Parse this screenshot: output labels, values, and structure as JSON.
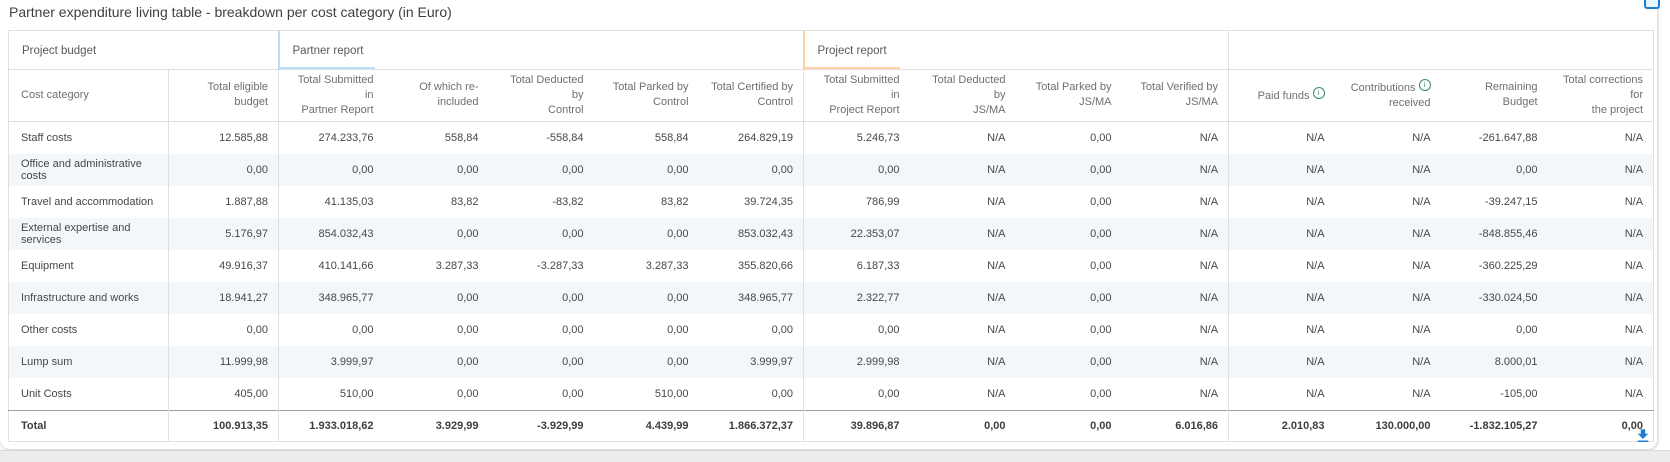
{
  "title": "Partner expenditure living table - breakdown per cost category (in Euro)",
  "accents": {
    "partner_report": "#b5e0f5",
    "project_report": "#fbd3a4",
    "info_icon": "#3c8a6d",
    "action_blue": "#1b7ed0"
  },
  "table": {
    "groups": [
      {
        "label": "Project budget",
        "span": 2,
        "accent": null
      },
      {
        "label": "Partner report",
        "span": 5,
        "accent": "#b5e0f5"
      },
      {
        "label": "Project report",
        "span": 4,
        "accent": "#fbd3a4"
      },
      {
        "label": "",
        "span": 4,
        "accent": null
      }
    ],
    "columns": [
      {
        "lines": [
          "Cost category"
        ]
      },
      {
        "lines": [
          "Total eligible budget"
        ]
      },
      {
        "lines": [
          "Total Submitted in",
          "Partner Report"
        ]
      },
      {
        "lines": [
          "Of which re-included"
        ]
      },
      {
        "lines": [
          "Total Deducted by",
          "Control"
        ]
      },
      {
        "lines": [
          "Total Parked by",
          "Control"
        ]
      },
      {
        "lines": [
          "Total Certified by",
          "Control"
        ]
      },
      {
        "lines": [
          "Total Submitted in",
          "Project Report"
        ]
      },
      {
        "lines": [
          "Total Deducted by",
          "JS/MA"
        ]
      },
      {
        "lines": [
          "Total Parked by",
          "JS/MA"
        ]
      },
      {
        "lines": [
          "Total Verified by",
          "JS/MA"
        ]
      },
      {
        "lines": [
          "Paid funds"
        ],
        "info": true
      },
      {
        "lines": [
          "Contributions",
          "received"
        ],
        "info": true
      },
      {
        "lines": [
          "Remaining Budget"
        ]
      },
      {
        "lines": [
          "Total corrections for",
          "the project"
        ]
      }
    ],
    "rows": [
      {
        "category": "Staff costs",
        "values": [
          "12.585,88",
          "274.233,76",
          "558,84",
          "-558,84",
          "558,84",
          "264.829,19",
          "5.246,73",
          "N/A",
          "0,00",
          "N/A",
          "N/A",
          "N/A",
          "-261.647,88",
          "N/A"
        ]
      },
      {
        "category": "Office and administrative costs",
        "values": [
          "0,00",
          "0,00",
          "0,00",
          "0,00",
          "0,00",
          "0,00",
          "0,00",
          "N/A",
          "0,00",
          "N/A",
          "N/A",
          "N/A",
          "0,00",
          "N/A"
        ]
      },
      {
        "category": "Travel and accommodation",
        "values": [
          "1.887,88",
          "41.135,03",
          "83,82",
          "-83,82",
          "83,82",
          "39.724,35",
          "786,99",
          "N/A",
          "0,00",
          "N/A",
          "N/A",
          "N/A",
          "-39.247,15",
          "N/A"
        ]
      },
      {
        "category": "External expertise and services",
        "values": [
          "5.176,97",
          "854.032,43",
          "0,00",
          "0,00",
          "0,00",
          "853.032,43",
          "22.353,07",
          "N/A",
          "0,00",
          "N/A",
          "N/A",
          "N/A",
          "-848.855,46",
          "N/A"
        ]
      },
      {
        "category": "Equipment",
        "values": [
          "49.916,37",
          "410.141,66",
          "3.287,33",
          "-3.287,33",
          "3.287,33",
          "355.820,66",
          "6.187,33",
          "N/A",
          "0,00",
          "N/A",
          "N/A",
          "N/A",
          "-360.225,29",
          "N/A"
        ]
      },
      {
        "category": "Infrastructure and works",
        "values": [
          "18.941,27",
          "348.965,77",
          "0,00",
          "0,00",
          "0,00",
          "348.965,77",
          "2.322,77",
          "N/A",
          "0,00",
          "N/A",
          "N/A",
          "N/A",
          "-330.024,50",
          "N/A"
        ]
      },
      {
        "category": "Other costs",
        "values": [
          "0,00",
          "0,00",
          "0,00",
          "0,00",
          "0,00",
          "0,00",
          "0,00",
          "N/A",
          "0,00",
          "N/A",
          "N/A",
          "N/A",
          "0,00",
          "N/A"
        ]
      },
      {
        "category": "Lump sum",
        "values": [
          "11.999,98",
          "3.999,97",
          "0,00",
          "0,00",
          "0,00",
          "3.999,97",
          "2.999,98",
          "N/A",
          "0,00",
          "N/A",
          "N/A",
          "N/A",
          "8.000,01",
          "N/A"
        ]
      },
      {
        "category": "Unit Costs",
        "values": [
          "405,00",
          "510,00",
          "0,00",
          "0,00",
          "510,00",
          "0,00",
          "0,00",
          "N/A",
          "0,00",
          "N/A",
          "N/A",
          "N/A",
          "-105,00",
          "N/A"
        ]
      }
    ],
    "total": {
      "category": "Total",
      "values": [
        "100.913,35",
        "1.933.018,62",
        "3.929,99",
        "-3.929,99",
        "4.439,99",
        "1.866.372,37",
        "39.896,87",
        "0,00",
        "0,00",
        "6.016,86",
        "2.010,83",
        "130.000,00",
        "-1.832.105,27",
        "0,00"
      ]
    }
  },
  "icons": {
    "corner": "maximize-icon",
    "download": "download-icon",
    "info": "info-icon"
  }
}
